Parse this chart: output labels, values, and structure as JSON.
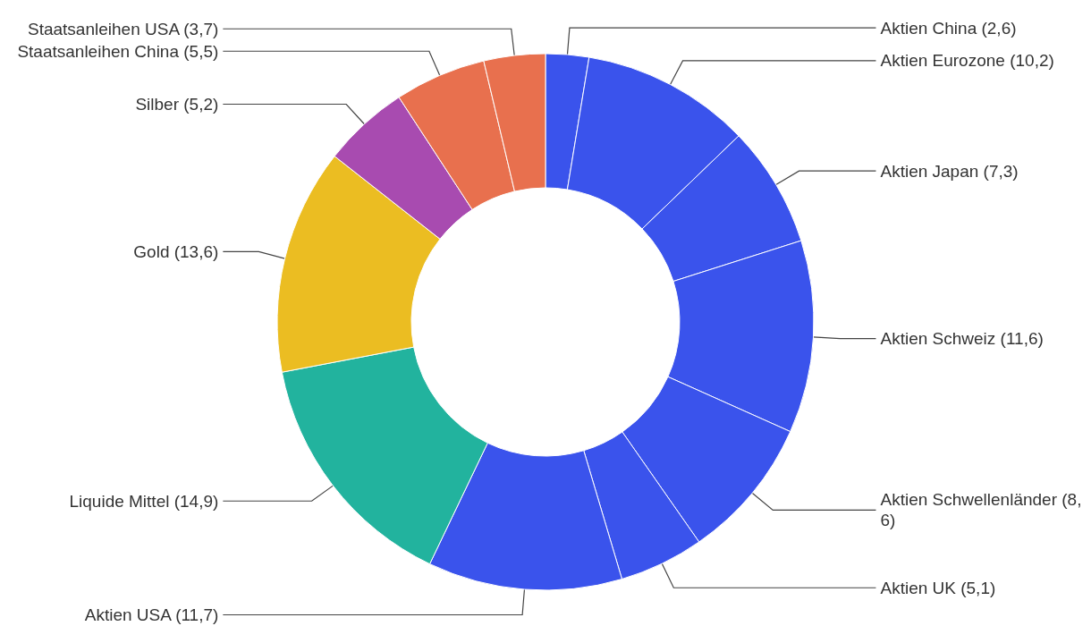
{
  "chart_data": {
    "type": "donut",
    "categories": [
      "Aktien China",
      "Aktien Eurozone",
      "Aktien Japan",
      "Aktien Schweiz",
      "Aktien Schwellenländer",
      "Aktien UK",
      "Aktien USA",
      "Liquide Mittel",
      "Gold",
      "Silber",
      "Staatsanleihen China",
      "Staatsanleihen USA"
    ],
    "values": [
      2.6,
      10.2,
      7.3,
      11.6,
      8.6,
      5.1,
      11.7,
      14.9,
      13.6,
      5.2,
      5.5,
      3.7
    ],
    "value_labels": [
      "(2,6)",
      "(10,2)",
      "(7,3)",
      "(11,6)",
      "(8,6)",
      "(5,1)",
      "(11,7)",
      "(14,9)",
      "(13,6)",
      "(5,2)",
      "(5,5)",
      "(3,7)"
    ],
    "colors": [
      "#3a53ec",
      "#3a53ec",
      "#3a53ec",
      "#3a53ec",
      "#3a53ec",
      "#3a53ec",
      "#3a53ec",
      "#22b39e",
      "#ebbd22",
      "#a84bb0",
      "#e8704e",
      "#e8704e"
    ],
    "legend": false
  }
}
